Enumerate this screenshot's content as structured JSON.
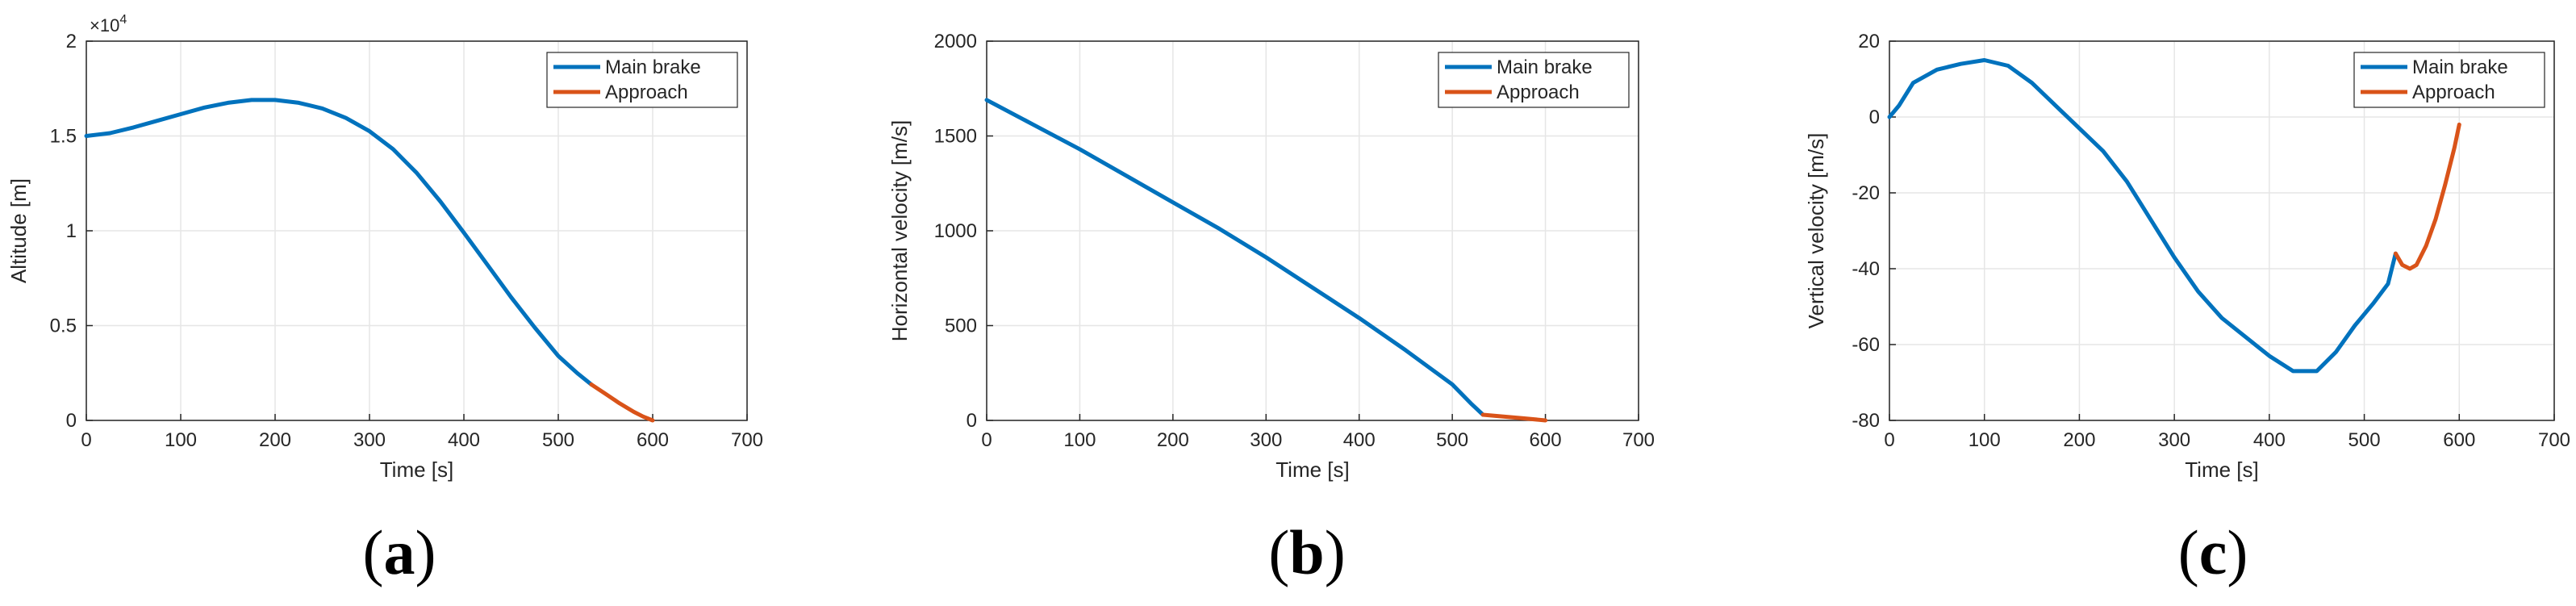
{
  "chart_data": [
    {
      "type": "line",
      "panel_label": "a",
      "xlabel": "Time [s]",
      "ylabel": "Altitude [m]",
      "xlim": [
        0,
        700
      ],
      "ylim": [
        0,
        20000
      ],
      "xticks": [
        0,
        100,
        200,
        300,
        400,
        500,
        600,
        700
      ],
      "yticks": [
        0,
        5000,
        10000,
        15000,
        20000
      ],
      "ytick_labels": [
        "0",
        "0.5",
        "1",
        "1.5",
        "2"
      ],
      "exponent_label": "×10",
      "exponent_power": "4",
      "grid": true,
      "legend_position": "top-right",
      "series": [
        {
          "name": "Main brake",
          "color": "#0072BD",
          "x": [
            0,
            25,
            50,
            75,
            100,
            125,
            150,
            175,
            200,
            225,
            250,
            275,
            300,
            325,
            350,
            375,
            400,
            425,
            450,
            475,
            500,
            520,
            535
          ],
          "y": [
            15000,
            15150,
            15450,
            15800,
            16150,
            16500,
            16750,
            16900,
            16900,
            16750,
            16450,
            15950,
            15250,
            14300,
            13050,
            11550,
            9900,
            8200,
            6500,
            4900,
            3400,
            2500,
            1900
          ]
        },
        {
          "name": "Approach",
          "color": "#D95319",
          "x": [
            535,
            550,
            565,
            580,
            590,
            600
          ],
          "y": [
            1900,
            1400,
            900,
            450,
            200,
            0
          ]
        }
      ]
    },
    {
      "type": "line",
      "panel_label": "b",
      "xlabel": "Time [s]",
      "ylabel": "Horizontal velocity [m/s]",
      "xlim": [
        0,
        700
      ],
      "ylim": [
        0,
        2000
      ],
      "xticks": [
        0,
        100,
        200,
        300,
        400,
        500,
        600,
        700
      ],
      "yticks": [
        0,
        500,
        1000,
        1500,
        2000
      ],
      "ytick_labels": [
        "0",
        "500",
        "1000",
        "1500",
        "2000"
      ],
      "grid": true,
      "legend_position": "top-right",
      "series": [
        {
          "name": "Main brake",
          "color": "#0072BD",
          "x": [
            0,
            50,
            100,
            150,
            200,
            250,
            300,
            350,
            400,
            450,
            500,
            520,
            533
          ],
          "y": [
            1690,
            1560,
            1430,
            1290,
            1150,
            1010,
            860,
            700,
            540,
            370,
            190,
            90,
            30
          ]
        },
        {
          "name": "Approach",
          "color": "#D95319",
          "x": [
            533,
            550,
            575,
            600
          ],
          "y": [
            30,
            22,
            12,
            0
          ]
        }
      ]
    },
    {
      "type": "line",
      "panel_label": "c",
      "xlabel": "Time [s]",
      "ylabel": "Vertical velocity [m/s]",
      "xlim": [
        0,
        700
      ],
      "ylim": [
        -80,
        20
      ],
      "xticks": [
        0,
        100,
        200,
        300,
        400,
        500,
        600,
        700
      ],
      "yticks": [
        -80,
        -60,
        -40,
        -20,
        0,
        20
      ],
      "ytick_labels": [
        "-80",
        "-60",
        "-40",
        "-20",
        "0",
        "20"
      ],
      "grid": true,
      "legend_position": "top-right",
      "series": [
        {
          "name": "Main brake",
          "color": "#0072BD",
          "x": [
            0,
            10,
            25,
            50,
            75,
            100,
            125,
            150,
            175,
            200,
            225,
            250,
            275,
            300,
            325,
            350,
            375,
            400,
            425,
            450,
            470,
            490,
            510,
            525,
            533
          ],
          "y": [
            0,
            3,
            9,
            12.5,
            14,
            15,
            13.5,
            9,
            3,
            -3,
            -9,
            -17,
            -27,
            -37,
            -46,
            -53,
            -58,
            -63,
            -67,
            -67,
            -62,
            -55,
            -49,
            -44,
            -36
          ]
        },
        {
          "name": "Approach",
          "color": "#D95319",
          "x": [
            533,
            540,
            548,
            555,
            565,
            575,
            585,
            595,
            600
          ],
          "y": [
            -36,
            -39,
            -40,
            -39,
            -34,
            -27,
            -18,
            -8,
            -2
          ]
        }
      ]
    }
  ]
}
